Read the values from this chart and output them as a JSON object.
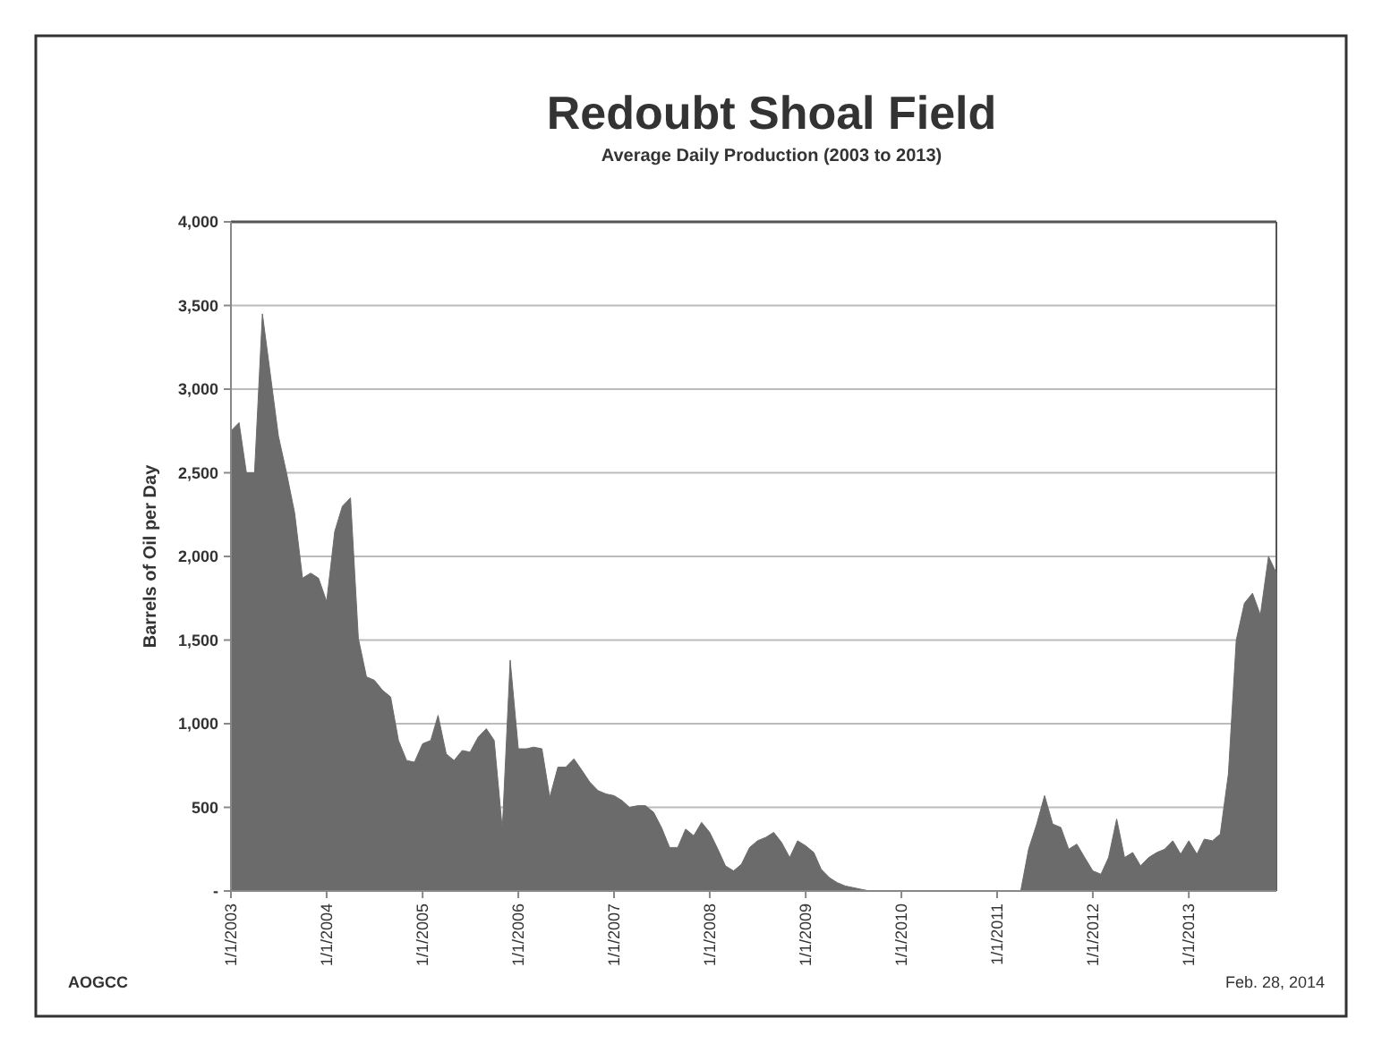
{
  "chart_data": {
    "type": "area",
    "title": "Redoubt Shoal Field",
    "subtitle": "Average Daily Production  (2003 to 2013)",
    "ylabel": "Barrels of Oil per Day",
    "annotations": [
      "AOGCC",
      "Feb. 28, 2014"
    ],
    "xlim": [
      "2003-01",
      "2013-12"
    ],
    "xticks": [
      {
        "value": "2003-01-01",
        "label": "1/1/2003"
      },
      {
        "value": "2004-01-01",
        "label": "1/1/2004"
      },
      {
        "value": "2005-01-01",
        "label": "1/1/2005"
      },
      {
        "value": "2006-01-01",
        "label": "1/1/2006"
      },
      {
        "value": "2007-01-01",
        "label": "1/1/2007"
      },
      {
        "value": "2008-01-01",
        "label": "1/1/2008"
      },
      {
        "value": "2009-01-01",
        "label": "1/1/2009"
      },
      {
        "value": "2010-01-01",
        "label": "1/1/2010"
      },
      {
        "value": "2011-01-01",
        "label": "1/1/2011"
      },
      {
        "value": "2012-01-01",
        "label": "1/1/2012"
      },
      {
        "value": "2013-01-01",
        "label": "1/1/2013"
      }
    ],
    "ylim": [
      0,
      4000
    ],
    "yticks": [
      {
        "value": 0,
        "label": "-"
      },
      500,
      {
        "value": 1000,
        "label": "1,000"
      },
      {
        "value": 1500,
        "label": "1,500"
      },
      {
        "value": 2000,
        "label": "2,000"
      },
      {
        "value": 2500,
        "label": "2,500"
      },
      {
        "value": 3000,
        "label": "3,000"
      },
      {
        "value": 3500,
        "label": "3,500"
      },
      {
        "value": 4000,
        "label": "4,000"
      }
    ],
    "grid": "y",
    "marker": "none",
    "series": [
      {
        "color": "#6b6b6b",
        "x": [
          "2003-01",
          "2003-02",
          "2003-03",
          "2003-04",
          "2003-05",
          "2003-06",
          "2003-07",
          "2003-08",
          "2003-09",
          "2003-10",
          "2003-11",
          "2003-12",
          "2004-01",
          "2004-02",
          "2004-03",
          "2004-04",
          "2004-05",
          "2004-06",
          "2004-07",
          "2004-08",
          "2004-09",
          "2004-10",
          "2004-11",
          "2004-12",
          "2005-01",
          "2005-02",
          "2005-03",
          "2005-04",
          "2005-05",
          "2005-06",
          "2005-07",
          "2005-08",
          "2005-09",
          "2005-10",
          "2005-11",
          "2005-12",
          "2006-01",
          "2006-02",
          "2006-03",
          "2006-04",
          "2006-05",
          "2006-06",
          "2006-07",
          "2006-08",
          "2006-09",
          "2006-10",
          "2006-11",
          "2006-12",
          "2007-01",
          "2007-02",
          "2007-03",
          "2007-04",
          "2007-05",
          "2007-06",
          "2007-07",
          "2007-08",
          "2007-09",
          "2007-10",
          "2007-11",
          "2007-12",
          "2008-01",
          "2008-02",
          "2008-03",
          "2008-04",
          "2008-05",
          "2008-06",
          "2008-07",
          "2008-08",
          "2008-09",
          "2008-10",
          "2008-11",
          "2008-12",
          "2009-01",
          "2009-02",
          "2009-03",
          "2009-04",
          "2009-05",
          "2009-06",
          "2009-07",
          "2009-08",
          "2009-09",
          "2011-04",
          "2011-05",
          "2011-06",
          "2011-07",
          "2011-08",
          "2011-09",
          "2011-10",
          "2011-11",
          "2011-12",
          "2012-01",
          "2012-02",
          "2012-03",
          "2012-04",
          "2012-05",
          "2012-06",
          "2012-07",
          "2012-08",
          "2012-09",
          "2012-10",
          "2012-11",
          "2012-12",
          "2013-01",
          "2013-02",
          "2013-03",
          "2013-04",
          "2013-05",
          "2013-06",
          "2013-07",
          "2013-08",
          "2013-09",
          "2013-10",
          "2013-11",
          "2013-12"
        ],
        "values": [
          2750,
          2800,
          2500,
          2500,
          3450,
          3080,
          2720,
          2500,
          2260,
          1870,
          1900,
          1870,
          1730,
          2150,
          2300,
          2350,
          1510,
          1280,
          1260,
          1200,
          1160,
          900,
          780,
          770,
          880,
          900,
          1050,
          820,
          780,
          840,
          830,
          920,
          970,
          900,
          370,
          1380,
          850,
          850,
          860,
          850,
          560,
          740,
          740,
          790,
          720,
          650,
          600,
          580,
          570,
          540,
          500,
          510,
          510,
          470,
          380,
          260,
          260,
          370,
          330,
          410,
          350,
          250,
          150,
          120,
          160,
          260,
          300,
          320,
          350,
          290,
          200,
          300,
          270,
          230,
          130,
          80,
          50,
          30,
          20,
          10,
          0,
          0,
          250,
          400,
          570,
          400,
          380,
          250,
          280,
          200,
          120,
          100,
          200,
          430,
          200,
          230,
          150,
          200,
          230,
          250,
          300,
          220,
          300,
          220,
          310,
          300,
          340,
          700,
          1500,
          1720,
          1780,
          1650,
          2000,
          1900
        ]
      }
    ]
  }
}
